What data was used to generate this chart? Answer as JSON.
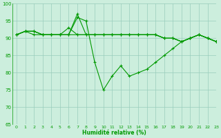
{
  "xlabel": "Humidité relative (%)",
  "background_color": "#cceedd",
  "grid_color": "#99ccbb",
  "line_color": "#009900",
  "ylim": [
    65,
    100
  ],
  "xlim": [
    -0.5,
    23
  ],
  "yticks": [
    65,
    70,
    75,
    80,
    85,
    90,
    95,
    100
  ],
  "xticks": [
    0,
    1,
    2,
    3,
    4,
    5,
    6,
    7,
    8,
    9,
    10,
    11,
    12,
    13,
    14,
    15,
    16,
    17,
    18,
    19,
    20,
    21,
    22,
    23
  ],
  "series_main_x": [
    0,
    1,
    2,
    3,
    4,
    5,
    6,
    7,
    8,
    9,
    10,
    11,
    12,
    13,
    14,
    15,
    16,
    17,
    18,
    19,
    20,
    21,
    22,
    23
  ],
  "series_main_y": [
    91,
    92,
    91,
    91,
    91,
    91,
    91,
    96,
    95,
    83,
    75,
    79,
    82,
    79,
    80,
    81,
    83,
    85,
    87,
    89,
    90,
    91,
    90,
    89
  ],
  "series_flat1_x": [
    0,
    1,
    2,
    3,
    4,
    5,
    6,
    7,
    8,
    9,
    10,
    11,
    12,
    13,
    14,
    15,
    16,
    17,
    18,
    19,
    20,
    21,
    22,
    23
  ],
  "series_flat1_y": [
    91,
    92,
    92,
    91,
    91,
    91,
    91,
    91,
    91,
    91,
    91,
    91,
    91,
    91,
    91,
    91,
    91,
    90,
    90,
    89,
    90,
    91,
    90,
    89
  ],
  "series_flat2_x": [
    0,
    1,
    2,
    3,
    4,
    5,
    6,
    7,
    8,
    9,
    10,
    11,
    12,
    13,
    14,
    15,
    16,
    17,
    18,
    19,
    20,
    21,
    22,
    23
  ],
  "series_flat2_y": [
    91,
    92,
    92,
    91,
    91,
    91,
    93,
    91,
    91,
    91,
    91,
    91,
    91,
    91,
    91,
    91,
    91,
    90,
    90,
    89,
    90,
    91,
    90,
    89
  ],
  "series_peak_x": [
    0,
    1,
    2,
    3,
    4,
    5,
    6,
    7,
    8,
    9,
    10,
    11,
    12,
    13,
    14,
    15,
    16,
    17,
    18,
    19,
    20,
    21,
    22,
    23
  ],
  "series_peak_y": [
    91,
    92,
    92,
    91,
    91,
    91,
    91,
    97,
    91,
    91,
    91,
    91,
    91,
    91,
    91,
    91,
    91,
    90,
    90,
    89,
    90,
    91,
    90,
    89
  ]
}
